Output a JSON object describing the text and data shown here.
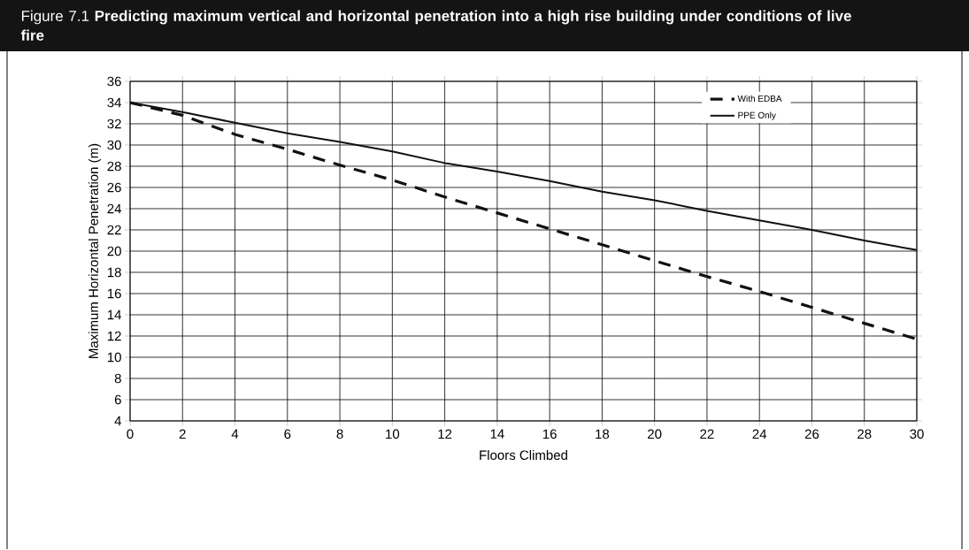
{
  "chart_data": {
    "type": "line",
    "title": "Figure 7.1 **Predicting maximum vertical and horizontal penetration into a high rise building under conditions of live fire**",
    "xlabel": "Floors Climbed",
    "ylabel": "Maximum Horizontal Penetration (m)",
    "x": [
      0,
      2,
      4,
      6,
      8,
      10,
      12,
      14,
      16,
      18,
      20,
      22,
      24,
      26,
      28,
      30
    ],
    "series": [
      {
        "name": "With EDBA",
        "color": "#111111",
        "line_style": "dashed",
        "values": [
          34,
          32.8,
          31.0,
          29.6,
          28.1,
          26.7,
          25.1,
          23.6,
          22.1,
          20.6,
          19.1,
          17.6,
          16.2,
          14.7,
          13.2,
          11.7
        ]
      },
      {
        "name": "PPE Only",
        "color": "#111111",
        "line_style": "solid",
        "values": [
          34,
          33.1,
          32.1,
          31.1,
          30.3,
          29.4,
          28.3,
          27.5,
          26.6,
          25.6,
          24.8,
          23.8,
          22.9,
          22.0,
          21.0,
          20.1
        ]
      }
    ],
    "xlim": [
      0,
      30
    ],
    "xticks": [
      0,
      2,
      4,
      6,
      8,
      10,
      12,
      14,
      16,
      18,
      20,
      22,
      24,
      26,
      28,
      30
    ],
    "ylim": [
      4,
      36
    ],
    "yticks": [
      4,
      6,
      8,
      10,
      12,
      14,
      16,
      18,
      20,
      22,
      24,
      26,
      28,
      30,
      32,
      34,
      36
    ],
    "grid": true,
    "legend": "top right",
    "marker": "none"
  }
}
